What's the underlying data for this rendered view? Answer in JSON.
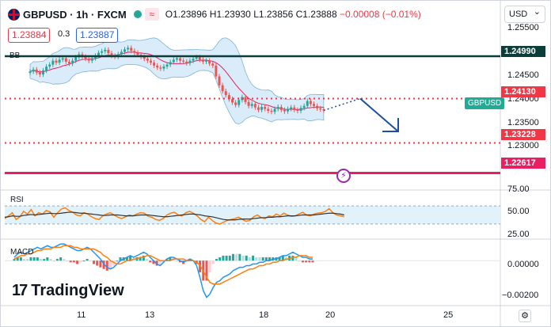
{
  "header": {
    "symbol": "GBPUSD · 1h · FXCM",
    "open": "O1.23896",
    "high": "H1.23930",
    "low": "L1.23856",
    "close": "C1.23888",
    "change": "−0.00008 (−0.01%)",
    "eq_icon": "≈"
  },
  "trade": {
    "sell": "1.23884",
    "spread": "0.3",
    "buy": "1.23887"
  },
  "currency": "USD",
  "indicators": {
    "bb": "BB",
    "rsi": "RSI",
    "macd": "MACD"
  },
  "price_labels": {
    "resistance": "1.24990",
    "level_1": "1.24130",
    "target": "1.23228",
    "support": "1.22617",
    "symbol_tag": "GBPUSD"
  },
  "axis": {
    "price_ticks": [
      "1.25500",
      "1.24500",
      "1.24000",
      "1.23500",
      "1.23000"
    ],
    "rsi_ticks": [
      "75.00",
      "50.00",
      "25.00"
    ],
    "macd_ticks": [
      "0.00000",
      "−0.00200"
    ],
    "time_ticks": [
      "11",
      "13",
      "18",
      "20",
      "25"
    ]
  },
  "logo": {
    "mark": "17",
    "text": "TradingView"
  },
  "colors": {
    "up": "#26a69a",
    "down": "#ef5350",
    "dashed_red": "#f23645",
    "support": "#e91e63",
    "resistance": "#0b3d3a",
    "bb_fill": "#cde6f7",
    "basis": "#e91e63",
    "rsi": "#ff7f0e",
    "rsi_ma": "#333333",
    "macd_line": "#2196f3",
    "signal": "#ff7f0e",
    "arrow": "#1e50a0"
  },
  "chart_data": {
    "type": "candlestick",
    "price_range": [
      1.224,
      1.2565
    ],
    "rsi_range": [
      0,
      100
    ],
    "overbought": 70,
    "oversold": 30,
    "macd_range": [
      -0.0026,
      0.0011
    ],
    "levels": [
      1.2499,
      1.2413,
      1.23228,
      1.22617
    ],
    "close": [
      1.2468,
      1.2472,
      1.2466,
      1.2462,
      1.247,
      1.2478,
      1.2482,
      1.249,
      1.2486,
      1.2492,
      1.2495,
      1.2488,
      1.2484,
      1.249,
      1.2497,
      1.2503,
      1.2498,
      1.2494,
      1.249,
      1.2495,
      1.25,
      1.2506,
      1.2509,
      1.2512,
      1.2505,
      1.25,
      1.2498,
      1.2503,
      1.2508,
      1.2513,
      1.2516,
      1.251,
      1.2506,
      1.2502,
      1.2498,
      1.2494,
      1.249,
      1.2486,
      1.248,
      1.2476,
      1.2474,
      1.2478,
      1.2482,
      1.2487,
      1.2492,
      1.2495,
      1.249,
      1.2488,
      1.2485,
      1.249,
      1.2494,
      1.2497,
      1.2492,
      1.2488,
      1.249,
      1.2484,
      1.248,
      1.2458,
      1.244,
      1.2428,
      1.242,
      1.2412,
      1.2405,
      1.24,
      1.241,
      1.2416,
      1.2406,
      1.2398,
      1.2402,
      1.2395,
      1.239,
      1.2396,
      1.2392,
      1.2388,
      1.2386,
      1.2392,
      1.2396,
      1.239,
      1.2387,
      1.2392,
      1.2395,
      1.239,
      1.2388,
      1.2394,
      1.2398,
      1.2408,
      1.2402,
      1.2398,
      1.2393,
      1.2391,
      1.2389
    ],
    "rsi": [
      42,
      48,
      55,
      40,
      46,
      58,
      52,
      62,
      48,
      55,
      52,
      60,
      57,
      45,
      55,
      63,
      66,
      60,
      56,
      50,
      48,
      55,
      52,
      46,
      42,
      40,
      48,
      52,
      55,
      50,
      45,
      42,
      46,
      50,
      48,
      52,
      55,
      54,
      47,
      45,
      40,
      38,
      42,
      50,
      54,
      56,
      50,
      48,
      55,
      58,
      54,
      48,
      40,
      35,
      45,
      38,
      32,
      30,
      34,
      38,
      40,
      42,
      45,
      40,
      36,
      38,
      46,
      50,
      44,
      42,
      48,
      46,
      52,
      48,
      54,
      50,
      47,
      48,
      52,
      56,
      50,
      48,
      52,
      54,
      55,
      58,
      64,
      55,
      50,
      48,
      46
    ],
    "rsi_ma": [
      45,
      46,
      48,
      47,
      47,
      49,
      50,
      51,
      50,
      51,
      52,
      53,
      54,
      53,
      53,
      54,
      55,
      56,
      56,
      55,
      54,
      54,
      53,
      52,
      51,
      50,
      49,
      49,
      50,
      50,
      50,
      49,
      48,
      48,
      48,
      49,
      50,
      50,
      50,
      49,
      48,
      47,
      46,
      46,
      47,
      48,
      49,
      50,
      51,
      52,
      52,
      51,
      50,
      48,
      47,
      46,
      44,
      42,
      40,
      39,
      39,
      39,
      40,
      41,
      41,
      41,
      42,
      43,
      44,
      44,
      45,
      45,
      46,
      46,
      47,
      48,
      48,
      48,
      49,
      50,
      50,
      50,
      50,
      51,
      52,
      53,
      54,
      54,
      53,
      52,
      50
    ],
    "macd": [
      0.0002,
      0.0004,
      0.0005,
      0.0004,
      0.0005,
      0.0006,
      0.0007,
      0.0008,
      0.0007,
      0.0008,
      0.0009,
      0.0008,
      0.0008,
      0.0009,
      0.001,
      0.001,
      0.0009,
      0.0008,
      0.0007,
      0.0006,
      0.0006,
      0.0007,
      0.0008,
      0.0007,
      0.0005,
      0.0003,
      0.0001,
      -0.0002,
      -0.0004,
      -0.0005,
      -0.0004,
      -0.0002,
      0.0,
      0.0001,
      0.0002,
      0.0003,
      0.0002,
      0.0003,
      0.0004,
      0.0005,
      0.0004,
      0.0002,
      0.0,
      -0.0002,
      -0.0003,
      -0.0001,
      0.0001,
      0.0002,
      0.0002,
      0.0001,
      0.0,
      -0.0001,
      0.0,
      0.0001,
      0.0,
      -0.0003,
      -0.001,
      -0.0018,
      -0.0022,
      -0.002,
      -0.0016,
      -0.0013,
      -0.0012,
      -0.001,
      -0.0009,
      -0.0008,
      -0.0006,
      -0.0005,
      -0.0004,
      -0.0004,
      -0.0003,
      -0.0003,
      -0.0002,
      -0.0002,
      -0.0001,
      -0.0001,
      0.0,
      0.0,
      0.0001,
      0.0001,
      0.0002,
      0.0003,
      0.0003,
      0.0004,
      0.0005,
      0.0004,
      0.0003,
      0.0002,
      0.0002,
      0.0001,
      0.0001
    ],
    "signal": [
      0.0001,
      0.0002,
      0.0003,
      0.0003,
      0.0004,
      0.0004,
      0.0005,
      0.0006,
      0.0006,
      0.0007,
      0.0007,
      0.0007,
      0.0008,
      0.0008,
      0.0008,
      0.0009,
      0.0009,
      0.0009,
      0.0008,
      0.0008,
      0.0007,
      0.0007,
      0.0007,
      0.0007,
      0.0007,
      0.0006,
      0.0005,
      0.0003,
      0.0002,
      0.0,
      -0.0001,
      -0.0002,
      -0.0002,
      -0.0001,
      0.0,
      0.0,
      0.0001,
      0.0001,
      0.0002,
      0.0002,
      0.0003,
      0.0003,
      0.0002,
      0.0001,
      0.0,
      0.0,
      0.0,
      0.0,
      0.0001,
      0.0001,
      0.0001,
      0.0001,
      0.0,
      0.0,
      0.0,
      -0.0001,
      -0.0003,
      -0.0006,
      -0.001,
      -0.0013,
      -0.0014,
      -0.0014,
      -0.0014,
      -0.0013,
      -0.0012,
      -0.0011,
      -0.001,
      -0.0009,
      -0.0008,
      -0.0007,
      -0.0006,
      -0.0005,
      -0.0005,
      -0.0004,
      -0.0003,
      -0.0003,
      -0.0002,
      -0.0002,
      -0.0001,
      -0.0001,
      0.0,
      0.0,
      0.0001,
      0.0001,
      0.0002,
      0.0002,
      0.0003,
      0.0003,
      0.0003,
      0.0002,
      0.0002
    ]
  }
}
